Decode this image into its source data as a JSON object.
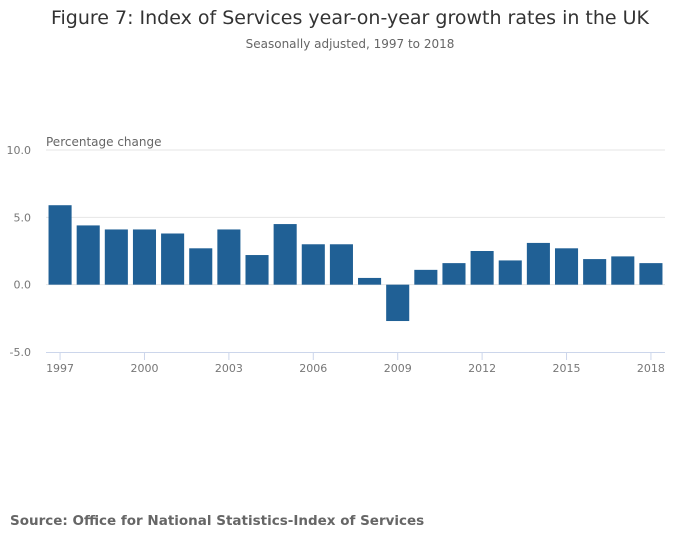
{
  "title": "Figure 7: Index of Services year-on-year growth rates in the UK",
  "subtitle": "Seasonally adjusted, 1997 to 2018",
  "source": "Source: Office for National Statistics-Index of Services",
  "chart_data": {
    "type": "bar",
    "title": "Figure 7: Index of Services year-on-year growth rates in the UK",
    "subtitle": "Seasonally adjusted, 1997 to 2018",
    "xlabel": "",
    "ylabel": "Percentage change",
    "categories": [
      "1997",
      "1998",
      "1999",
      "2000",
      "2001",
      "2002",
      "2003",
      "2004",
      "2005",
      "2006",
      "2007",
      "2008",
      "2009",
      "2010",
      "2011",
      "2012",
      "2013",
      "2014",
      "2015",
      "2016",
      "2017",
      "2018"
    ],
    "values": [
      5.9,
      4.4,
      4.1,
      4.1,
      3.8,
      2.7,
      4.1,
      2.2,
      4.5,
      3.0,
      3.0,
      0.5,
      -2.7,
      1.1,
      1.6,
      2.5,
      1.8,
      3.1,
      2.7,
      1.9,
      2.1,
      1.6
    ],
    "x_tick_labels": [
      "1997",
      "2000",
      "2003",
      "2006",
      "2009",
      "2012",
      "2015",
      "2018"
    ],
    "y_tick_labels": [
      "10.0",
      "5.0",
      "0.0",
      "-5.0"
    ],
    "y_ticks": [
      10,
      5,
      0,
      -5
    ],
    "ylim": [
      -5,
      10
    ],
    "grid": true,
    "bar_color": "#206095"
  }
}
